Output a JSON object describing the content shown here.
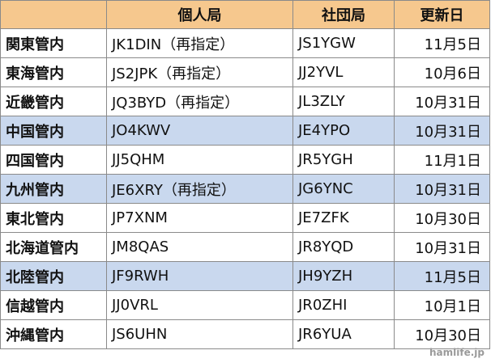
{
  "table": {
    "headers": {
      "region": "",
      "personal": "個人局",
      "club": "社団局",
      "updated": "更新日"
    },
    "rows": [
      {
        "region": "関東管内",
        "personal": "JK1DIN（再指定）",
        "club": "JS1YGW",
        "updated": "11月5日",
        "highlight": false
      },
      {
        "region": "東海管内",
        "personal": "JS2JPK（再指定）",
        "club": "JJ2YVL",
        "updated": "10月6日",
        "highlight": false
      },
      {
        "region": "近畿管内",
        "personal": "JQ3BYD（再指定）",
        "club": "JL3ZLY",
        "updated": "10月31日",
        "highlight": false
      },
      {
        "region": "中国管内",
        "personal": "JO4KWV",
        "club": "JE4YPO",
        "updated": "10月31日",
        "highlight": true
      },
      {
        "region": "四国管内",
        "personal": "JJ5QHM",
        "club": "JR5YGH",
        "updated": "11月1日",
        "highlight": false
      },
      {
        "region": "九州管内",
        "personal": "JE6XRY（再指定）",
        "club": "JG6YNC",
        "updated": "10月31日",
        "highlight": true
      },
      {
        "region": "東北管内",
        "personal": "JP7XNM",
        "club": "JE7ZFK",
        "updated": "10月30日",
        "highlight": false
      },
      {
        "region": "北海道管内",
        "personal": "JM8QAS",
        "club": "JR8YQD",
        "updated": "10月31日",
        "highlight": false
      },
      {
        "region": "北陸管内",
        "personal": "JF9RWH",
        "club": "JH9YZH",
        "updated": "11月5日",
        "highlight": true
      },
      {
        "region": "信越管内",
        "personal": "JJ0VRL",
        "club": "JR0ZHI",
        "updated": "10月1日",
        "highlight": false
      },
      {
        "region": "沖縄管内",
        "personal": "JS6UHN",
        "club": "JR6YUA",
        "updated": "10月30日",
        "highlight": false
      }
    ]
  },
  "watermark": "hamlife.jp",
  "colors": {
    "header_bg": "#f6c88e",
    "highlight_bg": "#c9d8ee",
    "border": "#8a8a8a"
  }
}
